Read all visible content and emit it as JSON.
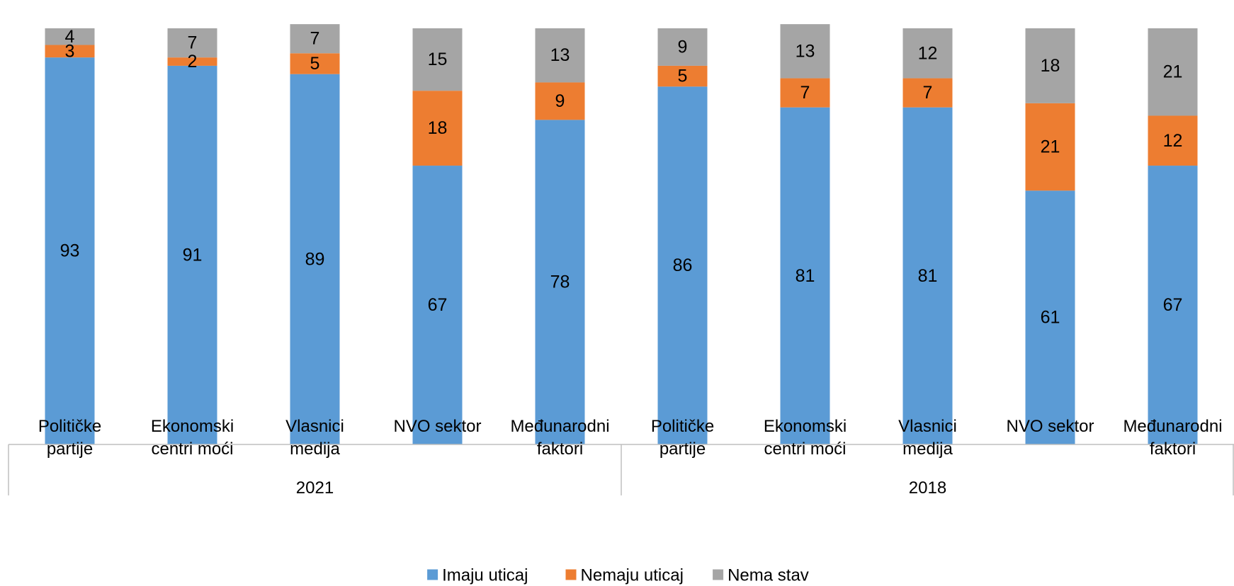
{
  "chart_data": {
    "type": "bar",
    "stacked": true,
    "groups": [
      {
        "label": "2021",
        "categories": [
          [
            "Političke",
            "partije"
          ],
          [
            "Ekonomski",
            "centri moći"
          ],
          [
            "Vlasnici",
            "medija"
          ],
          [
            "NVO sektor"
          ],
          [
            "Međunarodni",
            "faktori"
          ]
        ]
      },
      {
        "label": "2018",
        "categories": [
          [
            "Političke",
            "partije"
          ],
          [
            "Ekonomski",
            "centri moći"
          ],
          [
            "Vlasnici",
            "medija"
          ],
          [
            "NVO sektor"
          ],
          [
            "Međunarodni",
            "faktori"
          ]
        ]
      }
    ],
    "series": [
      {
        "name": "Imaju uticaj",
        "color": "#5B9BD5",
        "values": [
          93,
          91,
          89,
          67,
          78,
          86,
          81,
          81,
          61,
          67
        ]
      },
      {
        "name": "Nemaju uticaj",
        "color": "#ED7D31",
        "values": [
          3,
          2,
          5,
          18,
          9,
          5,
          7,
          7,
          21,
          12
        ]
      },
      {
        "name": "Nema stav",
        "color": "#A5A5A5",
        "values": [
          4,
          7,
          7,
          15,
          13,
          9,
          13,
          12,
          18,
          21
        ]
      }
    ],
    "ylim": [
      0,
      100
    ],
    "grid": false,
    "legend_position": "bottom",
    "data_labels": true
  }
}
